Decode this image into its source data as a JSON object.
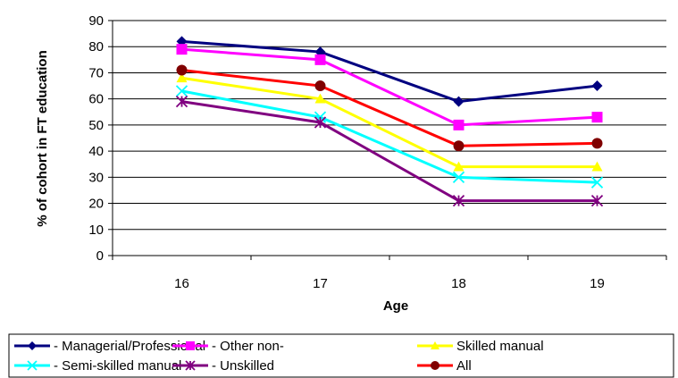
{
  "chart_data": {
    "type": "line",
    "x": [
      "16",
      "17",
      "18",
      "19"
    ],
    "xlabel": "Age",
    "ylabel": "% of cohort in FT education",
    "ylim": [
      0,
      90
    ],
    "yticks": [
      "0",
      "10",
      "20",
      "30",
      "40",
      "50",
      "60",
      "70",
      "80",
      "90"
    ],
    "grid": "horizontal",
    "legend_position": "bottom",
    "series": [
      {
        "name": "- Managerial/Professional",
        "values": [
          82,
          78,
          59,
          65
        ],
        "color": "#000080",
        "marker": "diamond"
      },
      {
        "name": "- Other non-",
        "values": [
          79,
          75,
          50,
          53
        ],
        "color": "#ff00ff",
        "marker": "square"
      },
      {
        "name": "Skilled manual",
        "values": [
          68,
          60,
          34,
          34
        ],
        "color": "#ffff00",
        "marker": "triangle"
      },
      {
        "name": "- Semi-skilled manual",
        "values": [
          63,
          53,
          30,
          28
        ],
        "color": "#00ffff",
        "marker": "x"
      },
      {
        "name": "- Unskilled",
        "values": [
          59,
          51,
          21,
          21
        ],
        "color": "#800080",
        "marker": "star"
      },
      {
        "name": "All",
        "values": [
          71,
          65,
          42,
          43
        ],
        "color": "#ff0000",
        "marker": "circle",
        "marker_color": "#800000"
      }
    ]
  }
}
